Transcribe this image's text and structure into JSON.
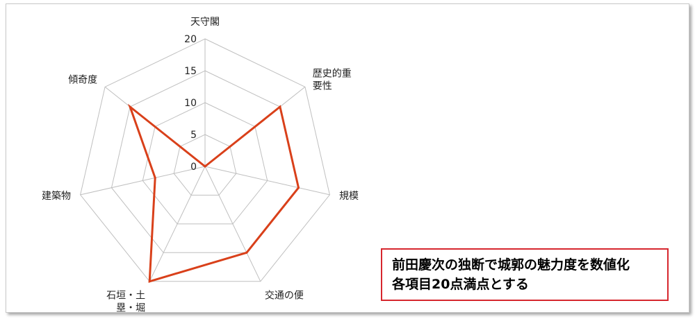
{
  "chart_data": {
    "type": "radar",
    "axes": [
      [
        "天守閣"
      ],
      [
        "歴史的重",
        "要性"
      ],
      [
        "規模"
      ],
      [
        "交通の便"
      ],
      [
        "石垣・土",
        "塁・堀"
      ],
      [
        "建築物"
      ],
      [
        "傾奇度"
      ]
    ],
    "values": [
      0,
      15,
      15,
      15,
      20,
      8,
      15
    ],
    "rlim": [
      0,
      20
    ],
    "ticks": [
      0,
      5,
      10,
      15,
      20
    ],
    "grid": true,
    "series_color": "#d9401a",
    "grid_color": "#bfbfbf"
  },
  "note": {
    "line1": "前田慶次の独断で城郭の魅力度を数値化",
    "line2": "各項目20点満点とする",
    "border_color": "#d6262d"
  }
}
